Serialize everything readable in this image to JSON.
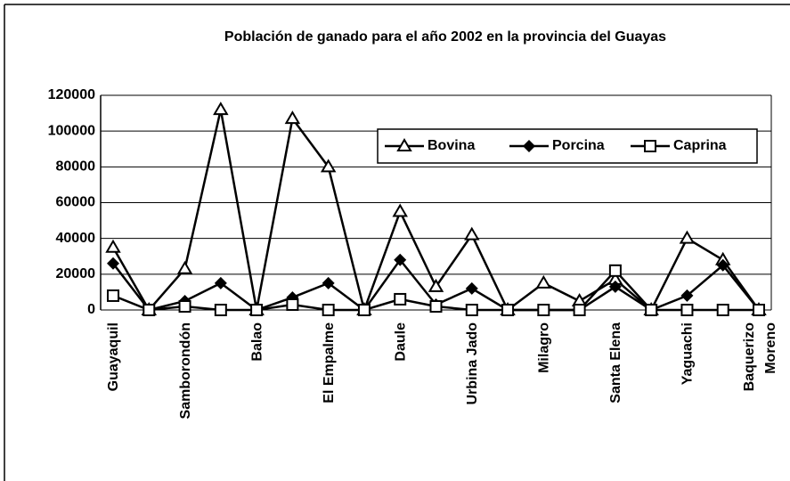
{
  "chart_data": {
    "type": "line",
    "title": "Población de ganado para el año 2002 en la provincia del Guayas",
    "categories": [
      "Guayaquil",
      null,
      "Samborondón",
      null,
      "Balao",
      null,
      "El Empalme",
      null,
      "Daule",
      null,
      "Urbina Jado",
      null,
      "Milagro",
      null,
      "Santa Elena",
      null,
      "Yaguachi",
      null,
      "Baquerizo Moreno"
    ],
    "series": [
      {
        "name": "Bovina",
        "color": "#000000",
        "marker": "triangle",
        "values": [
          35000,
          0,
          23000,
          112000,
          0,
          107000,
          80000,
          0,
          55000,
          13000,
          42000,
          0,
          15000,
          5000,
          17000,
          0,
          40000,
          28000,
          0
        ]
      },
      {
        "name": "Porcina",
        "color": "#000000",
        "marker": "diamond",
        "values": [
          26000,
          0,
          5000,
          15000,
          0,
          7000,
          15000,
          0,
          28000,
          3000,
          12000,
          0,
          0,
          0,
          13000,
          0,
          8000,
          25000,
          0
        ]
      },
      {
        "name": "Caprina",
        "color": "#000000",
        "marker": "square",
        "values": [
          8000,
          0,
          2000,
          0,
          0,
          3000,
          0,
          0,
          6000,
          2000,
          0,
          0,
          0,
          0,
          22000,
          0,
          0,
          0,
          0
        ]
      }
    ],
    "ylim": [
      0,
      120000
    ],
    "yticks": [
      0,
      20000,
      40000,
      60000,
      80000,
      100000,
      120000
    ],
    "grid": true,
    "legend": "upper right"
  }
}
